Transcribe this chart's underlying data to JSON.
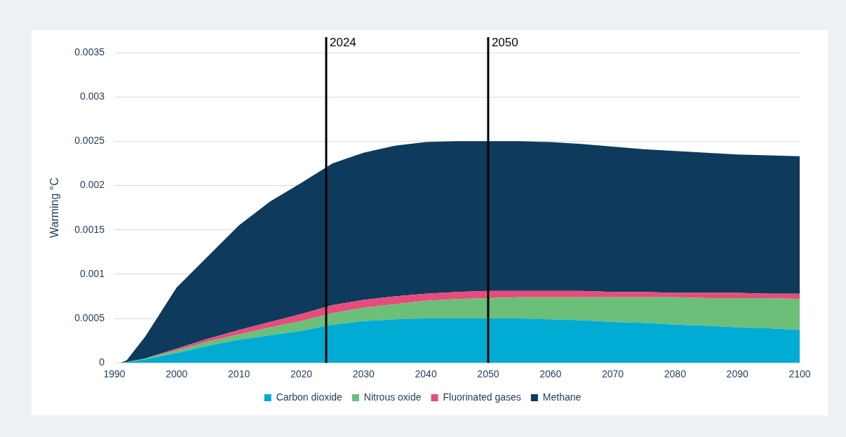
{
  "chart_data": {
    "type": "area",
    "stacked": true,
    "ylabel": "Warming °C",
    "xlim": [
      1990,
      2100
    ],
    "xticks": [
      1990,
      2000,
      2010,
      2020,
      2030,
      2040,
      2050,
      2060,
      2070,
      2080,
      2090,
      2100
    ],
    "ylim": [
      0,
      0.0035
    ],
    "yticks": [
      0,
      0.0005,
      0.001,
      0.0015,
      0.002,
      0.0025,
      0.003,
      0.0035
    ],
    "grid": "y",
    "legend": "bottom",
    "x": [
      1991,
      1992,
      1995,
      2000,
      2005,
      2010,
      2015,
      2020,
      2025,
      2030,
      2035,
      2040,
      2045,
      2050,
      2055,
      2060,
      2065,
      2070,
      2075,
      2080,
      2085,
      2090,
      2095,
      2100
    ],
    "series": [
      {
        "name": "Carbon dioxide",
        "color": "#00acd3",
        "values": [
          0,
          1e-05,
          4e-05,
          0.00011,
          0.00019,
          0.00026,
          0.00031,
          0.00036,
          0.00043,
          0.00047,
          0.00049,
          0.0005,
          0.0005,
          0.0005,
          0.0005,
          0.00049,
          0.00048,
          0.00046,
          0.00045,
          0.00043,
          0.00042,
          0.0004,
          0.00039,
          0.00037
        ]
      },
      {
        "name": "Nitrous oxide",
        "color": "#6bbf78",
        "values": [
          0,
          0,
          1e-05,
          3e-05,
          5e-05,
          6e-05,
          9e-05,
          0.00011,
          0.00013,
          0.00015,
          0.00017,
          0.0002,
          0.00022,
          0.00023,
          0.00024,
          0.00025,
          0.00026,
          0.00028,
          0.00029,
          0.00031,
          0.00031,
          0.00033,
          0.00034,
          0.00035
        ]
      },
      {
        "name": "Fluorinated gases",
        "color": "#e84c7d",
        "values": [
          0,
          0,
          0,
          2e-05,
          3e-05,
          5e-05,
          6e-05,
          8e-05,
          9e-05,
          9e-05,
          9e-05,
          8e-05,
          8e-05,
          8e-05,
          7e-05,
          7e-05,
          7e-05,
          6e-05,
          6e-05,
          5e-05,
          6e-05,
          6e-05,
          5e-05,
          6e-05
        ]
      },
      {
        "name": "Methane",
        "color": "#0e3a5c",
        "values": [
          0,
          2e-05,
          0.00025,
          0.00069,
          0.00093,
          0.00118,
          0.00136,
          0.00148,
          0.0016,
          0.00166,
          0.0017,
          0.00171,
          0.0017,
          0.00169,
          0.00169,
          0.00168,
          0.00166,
          0.00164,
          0.00161,
          0.0016,
          0.00158,
          0.00156,
          0.00156,
          0.00155
        ]
      }
    ],
    "ref_lines": [
      {
        "axis": "x",
        "value": 2024,
        "label": "2024",
        "color": "#000000"
      },
      {
        "axis": "x",
        "value": 2050,
        "label": "2050",
        "color": "#000000"
      }
    ]
  }
}
